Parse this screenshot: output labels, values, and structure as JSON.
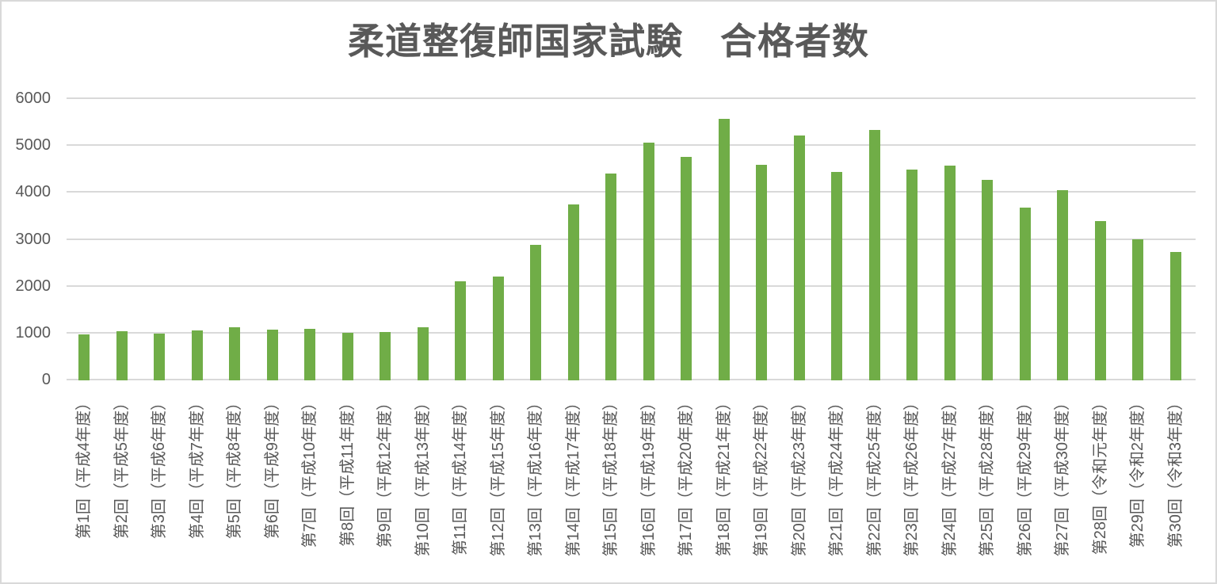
{
  "colors": {
    "bar": "#70AD47",
    "gridline": "#D9D9D9",
    "axis_text": "#595959",
    "title_text": "#595959",
    "background": "#FFFFFF",
    "border": "#D9D9D9"
  },
  "chart_data": {
    "type": "bar",
    "title": "柔道整復師国家試験　合格者数",
    "xlabel": "",
    "ylabel": "",
    "ylim": [
      0,
      6000
    ],
    "yticks": [
      0,
      1000,
      2000,
      3000,
      4000,
      5000,
      6000
    ],
    "grid": "horizontal",
    "legend": "none",
    "categories": [
      "第1回（平成4年度）",
      "第2回（平成5年度）",
      "第3回（平成6年度）",
      "第4回（平成7年度）",
      "第5回（平成8年度）",
      "第6回（平成9年度）",
      "第7回（平成10年度）",
      "第8回（平成11年度）",
      "第9回（平成12年度）",
      "第10回（平成13年度）",
      "第11回（平成14年度）",
      "第12回（平成15年度）",
      "第13回（平成16年度）",
      "第14回（平成17年度）",
      "第15回（平成18年度）",
      "第16回（平成19年度）",
      "第17回（平成20年度）",
      "第18回（平成21年度）",
      "第19回（平成22年度）",
      "第20回（平成23年度）",
      "第21回（平成24年度）",
      "第22回（平成25年度）",
      "第23回（平成26年度）",
      "第24回（平成27年度）",
      "第25回（平成28年度）",
      "第26回（平成29年度）",
      "第27回（平成30年度）",
      "第28回（令和元年度）",
      "第29回（令和2年度）",
      "第30回（令和3年度）"
    ],
    "values": [
      979,
      1049,
      997,
      1065,
      1133,
      1076,
      1099,
      1021,
      1036,
      1133,
      2113,
      2210,
      2894,
      3744,
      4416,
      5069,
      4763,
      5570,
      4592,
      5227,
      4438,
      5349,
      4503,
      4582,
      4274,
      3690,
      4054,
      3401,
      3011,
      2740
    ]
  }
}
